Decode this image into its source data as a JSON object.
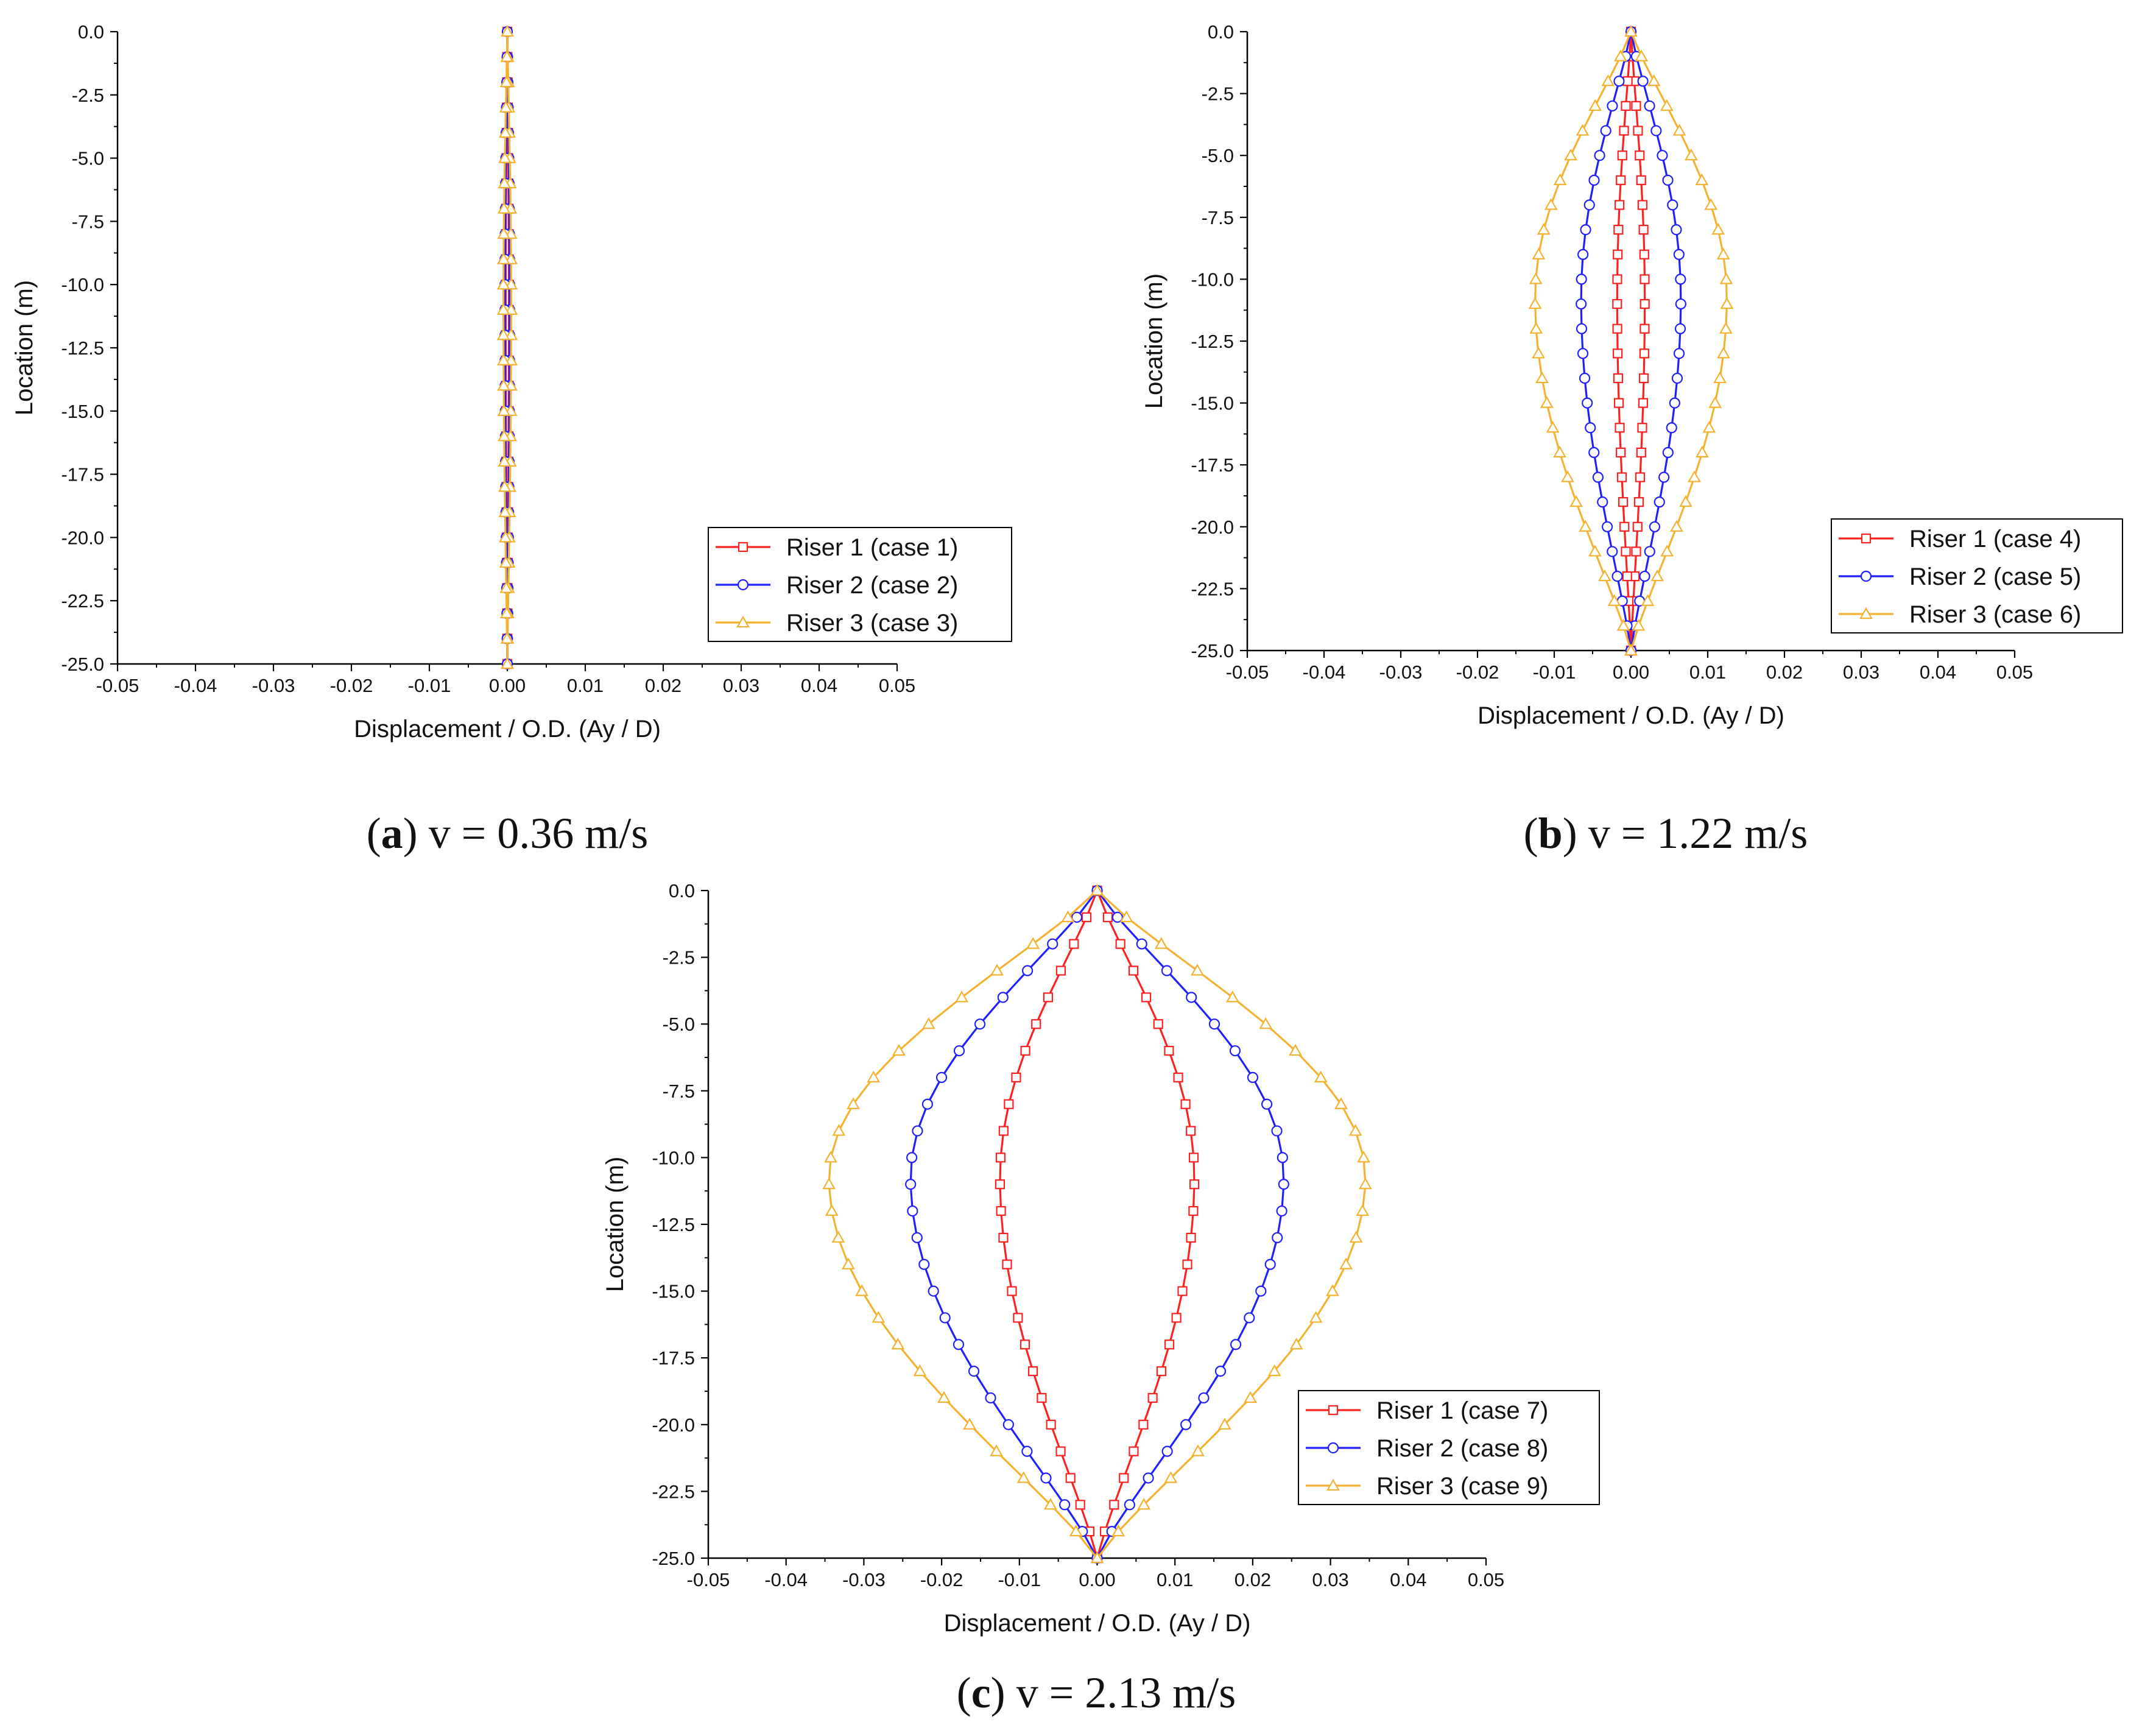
{
  "colors": {
    "riser1": "#ff2020",
    "riser2": "#2020ff",
    "riser3": "#f5b130",
    "axis": "#000000"
  },
  "marker_shapes": [
    "square",
    "circle",
    "triangle"
  ],
  "chart_data": [
    {
      "type": "line",
      "title": "",
      "caption_letter": "a",
      "caption_rest": "v = 0.36 m/s",
      "caption_open": "(",
      "caption_close": ")",
      "xlabel": "Displacement / O.D. (Ay / D)",
      "ylabel": "Location (m)",
      "xlim": [
        -0.05,
        0.05
      ],
      "ylim": [
        -25,
        0
      ],
      "xticks": [
        "-0.05",
        "-0.04",
        "-0.03",
        "-0.02",
        "-0.01",
        "0.00",
        "0.01",
        "0.02",
        "0.03",
        "0.04",
        "0.05"
      ],
      "yticks": [
        "0.0",
        "-2.5",
        "-5.0",
        "-7.5",
        "-10.0",
        "-12.5",
        "-15.0",
        "-17.5",
        "-20.0",
        "-22.5",
        "-25.0"
      ],
      "legend_position": "right",
      "series": [
        {
          "name": "Riser 1 (case 1)",
          "marker": "square",
          "amplitude": 0.0002,
          "n_points": 25
        },
        {
          "name": "Riser 2 (case 2)",
          "marker": "circle",
          "amplitude": 0.0003,
          "n_points": 25
        },
        {
          "name": "Riser 3 (case 3)",
          "marker": "triangle",
          "amplitude": 0.0005,
          "n_points": 25
        }
      ]
    },
    {
      "type": "line",
      "title": "",
      "caption_letter": "b",
      "caption_rest": "v = 1.22 m/s",
      "caption_open": "(",
      "caption_close": ")",
      "xlabel": "Displacement / O.D. (Ay / D)",
      "ylabel": "Location (m)",
      "xlim": [
        -0.05,
        0.05
      ],
      "ylim": [
        -25,
        0
      ],
      "xticks": [
        "-0.05",
        "-0.04",
        "-0.03",
        "-0.02",
        "-0.01",
        "0.00",
        "0.01",
        "0.02",
        "0.03",
        "0.04",
        "0.05"
      ],
      "yticks": [
        "0.0",
        "-2.5",
        "-5.0",
        "-7.5",
        "-10.0",
        "-12.5",
        "-15.0",
        "-17.5",
        "-20.0",
        "-22.5",
        "-25.0"
      ],
      "legend_position": "bottom-right",
      "series": [
        {
          "name": "Riser 1 (case 4)",
          "marker": "square",
          "amplitude": 0.0018,
          "n_points": 25
        },
        {
          "name": "Riser 2 (case 5)",
          "marker": "circle",
          "amplitude": 0.0065,
          "n_points": 25
        },
        {
          "name": "Riser 3 (case 6)",
          "marker": "triangle",
          "amplitude": 0.0125,
          "n_points": 25
        }
      ]
    },
    {
      "type": "line",
      "title": "",
      "caption_letter": "c",
      "caption_rest": "v = 2.13 m/s",
      "caption_open": "(",
      "caption_close": ")",
      "xlabel": "Displacement / O.D. (Ay / D)",
      "ylabel": "Location (m)",
      "xlim": [
        -0.05,
        0.05
      ],
      "ylim": [
        -25,
        0
      ],
      "xticks": [
        "-0.05",
        "-0.04",
        "-0.03",
        "-0.02",
        "-0.01",
        "0.00",
        "0.01",
        "0.02",
        "0.03",
        "0.04",
        "0.05"
      ],
      "yticks": [
        "0.0",
        "-2.5",
        "-5.0",
        "-7.5",
        "-10.0",
        "-12.5",
        "-15.0",
        "-17.5",
        "-20.0",
        "-22.5",
        "-25.0"
      ],
      "legend_position": "bottom-right",
      "series": [
        {
          "name": "Riser 1 (case 7)",
          "marker": "square",
          "amplitude": 0.0125,
          "n_points": 25
        },
        {
          "name": "Riser 2 (case 8)",
          "marker": "circle",
          "amplitude": 0.024,
          "n_points": 25
        },
        {
          "name": "Riser 3 (case 9)",
          "marker": "triangle",
          "amplitude": 0.0345,
          "n_points": 25
        }
      ]
    }
  ]
}
